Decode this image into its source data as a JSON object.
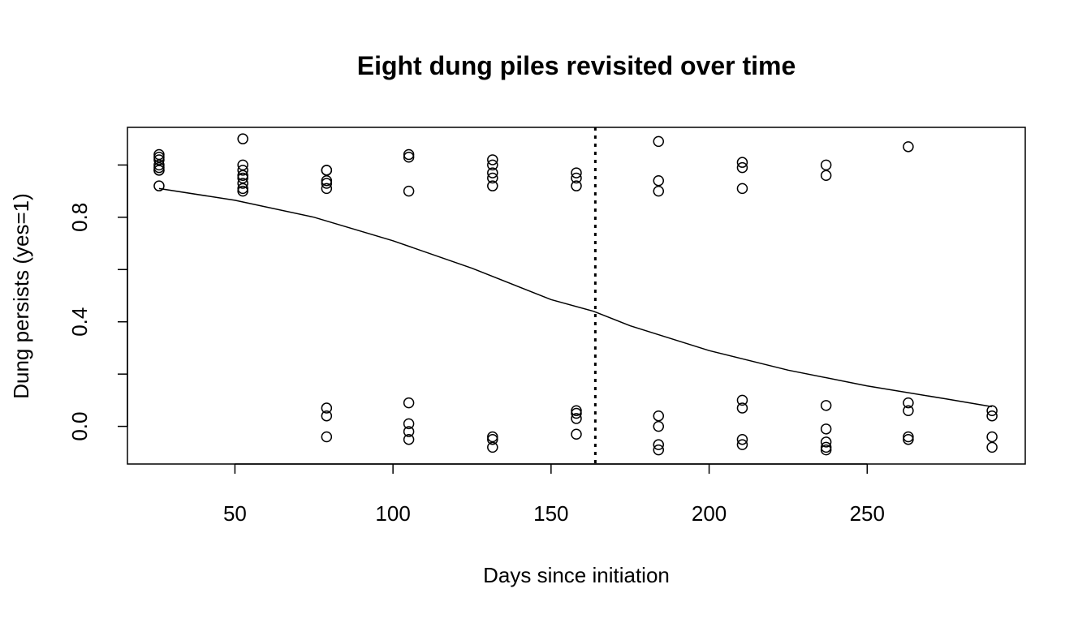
{
  "chart_data": {
    "type": "scatter",
    "title": "Eight dung piles revisited over time",
    "xlabel": "Days since initiation",
    "ylabel": "Dung persists (yes=1)",
    "xlim": [
      16,
      300
    ],
    "ylim": [
      -0.144,
      1.144
    ],
    "x_ticks": [
      50,
      100,
      150,
      200,
      250
    ],
    "y_ticks": [
      0.0,
      0.2,
      0.4,
      0.6,
      0.8,
      1.0
    ],
    "y_tick_labels": [
      "0.0",
      "",
      "0.4",
      "",
      "0.8",
      ""
    ],
    "grid": false,
    "legend": "none",
    "points": [
      {
        "x": 26,
        "y": 1.04
      },
      {
        "x": 26,
        "y": 1.03
      },
      {
        "x": 26,
        "y": 1.02
      },
      {
        "x": 26,
        "y": 1.0
      },
      {
        "x": 26,
        "y": 0.99
      },
      {
        "x": 26,
        "y": 0.98
      },
      {
        "x": 26,
        "y": 0.98
      },
      {
        "x": 26,
        "y": 0.92
      },
      {
        "x": 52.5,
        "y": 1.1
      },
      {
        "x": 52.5,
        "y": 1.0
      },
      {
        "x": 52.5,
        "y": 0.98
      },
      {
        "x": 52.5,
        "y": 0.96
      },
      {
        "x": 52.5,
        "y": 0.95
      },
      {
        "x": 52.5,
        "y": 0.93
      },
      {
        "x": 52.5,
        "y": 0.91
      },
      {
        "x": 52.5,
        "y": 0.9
      },
      {
        "x": 79,
        "y": 0.98
      },
      {
        "x": 79,
        "y": 0.98
      },
      {
        "x": 79,
        "y": 0.94
      },
      {
        "x": 79,
        "y": 0.93
      },
      {
        "x": 79,
        "y": 0.91
      },
      {
        "x": 79,
        "y": 0.07
      },
      {
        "x": 79,
        "y": 0.04
      },
      {
        "x": 79,
        "y": -0.04
      },
      {
        "x": 105,
        "y": 1.04
      },
      {
        "x": 105,
        "y": 1.03
      },
      {
        "x": 105,
        "y": 0.9
      },
      {
        "x": 105,
        "y": 0.09
      },
      {
        "x": 105,
        "y": 0.01
      },
      {
        "x": 105,
        "y": -0.02
      },
      {
        "x": 105,
        "y": -0.05
      },
      {
        "x": 131.5,
        "y": 1.02
      },
      {
        "x": 131.5,
        "y": 1.0
      },
      {
        "x": 131.5,
        "y": 0.97
      },
      {
        "x": 131.5,
        "y": 0.95
      },
      {
        "x": 131.5,
        "y": 0.92
      },
      {
        "x": 131.5,
        "y": -0.04
      },
      {
        "x": 131.5,
        "y": -0.05
      },
      {
        "x": 131.5,
        "y": -0.08
      },
      {
        "x": 158,
        "y": 0.97
      },
      {
        "x": 158,
        "y": 0.95
      },
      {
        "x": 158,
        "y": 0.92
      },
      {
        "x": 158,
        "y": 0.06
      },
      {
        "x": 158,
        "y": 0.05
      },
      {
        "x": 158,
        "y": 0.03
      },
      {
        "x": 158,
        "y": -0.03
      },
      {
        "x": 184,
        "y": 1.09
      },
      {
        "x": 184,
        "y": 0.94
      },
      {
        "x": 184,
        "y": 0.9
      },
      {
        "x": 184,
        "y": 0.04
      },
      {
        "x": 184,
        "y": 0.0
      },
      {
        "x": 184,
        "y": -0.07
      },
      {
        "x": 184,
        "y": -0.09
      },
      {
        "x": 210.5,
        "y": 1.01
      },
      {
        "x": 210.5,
        "y": 0.99
      },
      {
        "x": 210.5,
        "y": 0.91
      },
      {
        "x": 210.5,
        "y": 0.1
      },
      {
        "x": 210.5,
        "y": 0.07
      },
      {
        "x": 210.5,
        "y": -0.05
      },
      {
        "x": 210.5,
        "y": -0.07
      },
      {
        "x": 237,
        "y": 1.0
      },
      {
        "x": 237,
        "y": 0.96
      },
      {
        "x": 237,
        "y": 0.08
      },
      {
        "x": 237,
        "y": -0.01
      },
      {
        "x": 237,
        "y": -0.06
      },
      {
        "x": 237,
        "y": -0.08
      },
      {
        "x": 237,
        "y": -0.09
      },
      {
        "x": 263,
        "y": 1.07
      },
      {
        "x": 263,
        "y": 0.09
      },
      {
        "x": 263,
        "y": 0.06
      },
      {
        "x": 263,
        "y": -0.04
      },
      {
        "x": 263,
        "y": -0.05
      },
      {
        "x": 289.5,
        "y": 0.06
      },
      {
        "x": 289.5,
        "y": 0.04
      },
      {
        "x": 289.5,
        "y": -0.04
      },
      {
        "x": 289.5,
        "y": -0.08
      }
    ],
    "fitted_curve": {
      "style": "solid",
      "points": [
        {
          "x": 26,
          "y": 0.91
        },
        {
          "x": 50,
          "y": 0.865
        },
        {
          "x": 75,
          "y": 0.8
        },
        {
          "x": 100,
          "y": 0.71
        },
        {
          "x": 125,
          "y": 0.605
        },
        {
          "x": 150,
          "y": 0.485
        },
        {
          "x": 163.5,
          "y": 0.44
        },
        {
          "x": 175,
          "y": 0.385
        },
        {
          "x": 200,
          "y": 0.29
        },
        {
          "x": 225,
          "y": 0.215
        },
        {
          "x": 250,
          "y": 0.155
        },
        {
          "x": 275,
          "y": 0.105
        },
        {
          "x": 289.5,
          "y": 0.075
        }
      ]
    },
    "reference_line": {
      "x": 164,
      "style": "dotted"
    }
  }
}
